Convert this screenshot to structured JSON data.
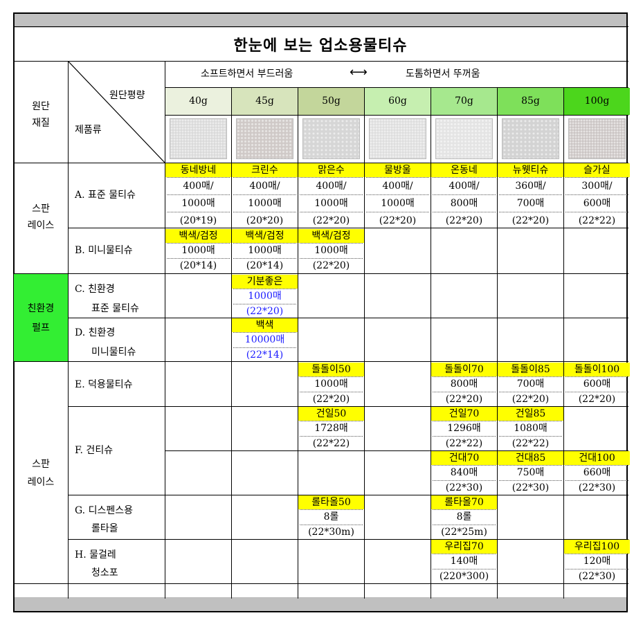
{
  "title": "한눈에 보는 업소용물티슈",
  "header": {
    "material_label": [
      "원단",
      "재질"
    ],
    "weight_label": "원단평량",
    "product_label": "제품류",
    "soft_label": "소프트하면서 부드러움",
    "arrow": "⟷",
    "thick_label": "도톰하면서 뚜꺼움",
    "weights": [
      "40g",
      "45g",
      "50g",
      "60g",
      "70g",
      "85g",
      "100g"
    ],
    "weight_colors": [
      "#ebf1de",
      "#d7e4bc",
      "#c3d69b",
      "#c6efb0",
      "#a6e88e",
      "#7ee05a",
      "#4cd61c"
    ]
  },
  "groups": {
    "spunlace_1": [
      "스판",
      "레이스"
    ],
    "eco": [
      "친환경",
      "펄프"
    ],
    "spunlace_2": [
      "스판",
      "레이스"
    ],
    "eco_color": "#33ee33"
  },
  "rows": {
    "A": {
      "label": "A. 표준 물티슈",
      "cells": [
        {
          "name": "동네방네",
          "qty1": "400매/",
          "qty2": "1000매",
          "size": "(20*19)"
        },
        {
          "name": "크린수",
          "qty1": "400매/",
          "qty2": "1000매",
          "size": "(20*20)"
        },
        {
          "name": "맑은수",
          "qty1": "400매/",
          "qty2": "1000매",
          "size": "(22*20)"
        },
        {
          "name": "물방울",
          "qty1": "400매/",
          "qty2": "1000매",
          "size": "(22*20)"
        },
        {
          "name": "온동네",
          "qty1": "400매/",
          "qty2": "800매",
          "size": "(22*20)"
        },
        {
          "name": "뉴웻티슈",
          "qty1": "360매/",
          "qty2": "700매",
          "size": "(22*20)"
        },
        {
          "name": "슬가실",
          "qty1": "300매/",
          "qty2": "600매",
          "size": "(22*22)"
        }
      ]
    },
    "B": {
      "label": "B. 미니물티슈",
      "cells": [
        {
          "name": "백색/검정",
          "qty": "1000매",
          "size": "(20*14)"
        },
        {
          "name": "백색/검정",
          "qty": "1000매",
          "size": "(20*14)"
        },
        {
          "name": "백색/검정",
          "qty": "1000매",
          "size": "(22*20)"
        }
      ]
    },
    "C": {
      "label1": "C. 친환경",
      "label2": "표준 물티슈",
      "cell": {
        "name": "기분좋은",
        "qty": "1000매",
        "size": "(22*20)"
      }
    },
    "D": {
      "label1": "D. 친환경",
      "label2": "미니물티슈",
      "cell": {
        "name": "백색",
        "qty": "10000매",
        "size": "(22*14)"
      }
    },
    "E": {
      "label": "E. 덕용물티슈",
      "cells": {
        "50g": {
          "name": "돌돌이50",
          "qty": "1000매",
          "size": "(22*20)"
        },
        "70g": {
          "name": "돌돌이70",
          "qty": "800매",
          "size": "(22*20)"
        },
        "85g": {
          "name": "돌돌이85",
          "qty": "700매",
          "size": "(22*20)"
        },
        "100g": {
          "name": "돌돌이100",
          "qty": "600매",
          "size": "(22*20)"
        }
      }
    },
    "F": {
      "label": "F. 건티슈",
      "top": {
        "50g": {
          "name": "건일50",
          "qty": "1728매",
          "size": "(22*22)"
        },
        "70g": {
          "name": "건일70",
          "qty": "1296매",
          "size": "(22*22)"
        },
        "85g": {
          "name": "건일85",
          "qty": "1080매",
          "size": "(22*22)"
        }
      },
      "bottom": {
        "70g": {
          "name": "건대70",
          "qty": "840매",
          "size": "(22*30)"
        },
        "85g": {
          "name": "건대85",
          "qty": "750매",
          "size": "(22*30)"
        },
        "100g": {
          "name": "건대100",
          "qty": "660매",
          "size": "(22*30)"
        }
      }
    },
    "G": {
      "label1": "G. 디스펜스용",
      "label2": "롤타올",
      "cells": {
        "50g": {
          "name": "롤타올50",
          "qty": "8롤",
          "size": "(22*30m)"
        },
        "70g": {
          "name": "롤타올70",
          "qty": "8롤",
          "size": "(22*25m)"
        }
      }
    },
    "H": {
      "label1": "H. 물걸레",
      "label2": "청소포",
      "cells": {
        "70g": {
          "name": "우리집70",
          "qty": "140매",
          "size": "(220*300)"
        },
        "100g": {
          "name": "우리집100",
          "qty": "120매",
          "size": "(22*30)"
        }
      }
    }
  }
}
